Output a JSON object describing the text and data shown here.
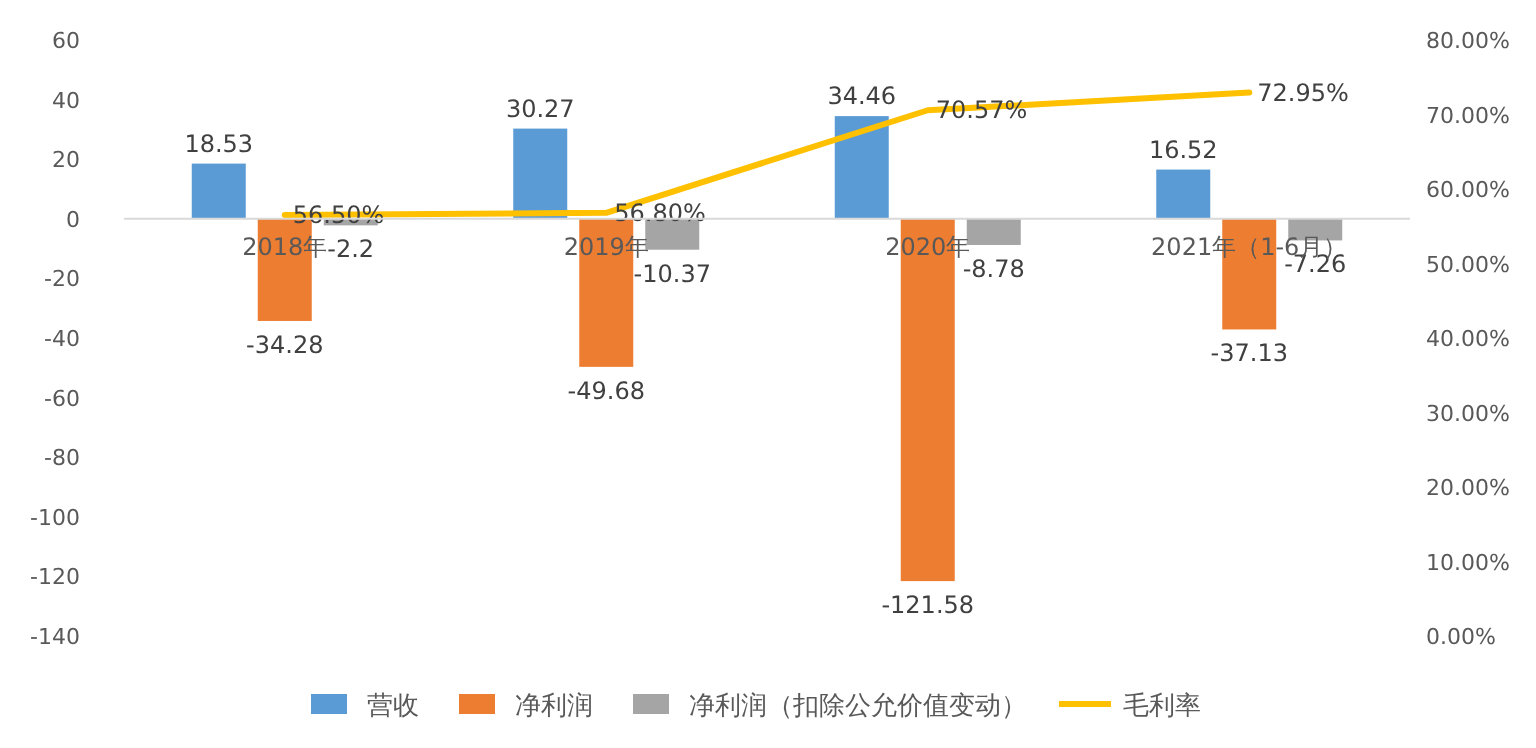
{
  "chart_data": {
    "type": "bar",
    "categories": [
      "2018年",
      "2019年",
      "2020年",
      "2021年（1-6月）"
    ],
    "series": [
      {
        "name": "营收",
        "color": "#5b9bd5",
        "values": [
          18.53,
          30.27,
          34.46,
          16.52
        ]
      },
      {
        "name": "净利润",
        "color": "#ed7d31",
        "values": [
          -34.28,
          -49.68,
          -121.58,
          -37.13
        ]
      },
      {
        "name": "净利润（扣除公允价值变动）",
        "color": "#a5a5a5",
        "values": [
          -2.2,
          -10.37,
          -8.78,
          -7.26
        ]
      },
      {
        "name": "毛利率",
        "type": "line",
        "axis": "y2",
        "color": "#ffc000",
        "values": [
          56.5,
          56.8,
          70.57,
          72.95
        ],
        "value_labels": [
          "56.50%",
          "56.80%",
          "70.57%",
          "72.95%"
        ]
      }
    ],
    "ylim": [
      -140,
      60
    ],
    "yticks": [
      -140,
      -120,
      -100,
      -80,
      -60,
      -40,
      -20,
      0,
      20,
      40,
      60
    ],
    "y2lim": [
      0,
      80
    ],
    "y2ticks": [
      {
        "value": 0,
        "label": "0.00%"
      },
      {
        "value": 10,
        "label": "10.00%"
      },
      {
        "value": 20,
        "label": "20.00%"
      },
      {
        "value": 30,
        "label": "30.00%"
      },
      {
        "value": 40,
        "label": "40.00%"
      },
      {
        "value": 50,
        "label": "50.00%"
      },
      {
        "value": 60,
        "label": "60.00%"
      },
      {
        "value": 70,
        "label": "70.00%"
      },
      {
        "value": 80,
        "label": "80.00%"
      }
    ],
    "data_labels": true,
    "legend": "bottom",
    "grid": false
  }
}
